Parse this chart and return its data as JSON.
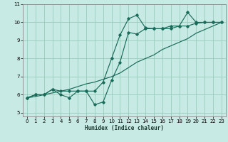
{
  "xlabel": "Humidex (Indice chaleur)",
  "ylabel": "",
  "xlim": [
    -0.5,
    23.5
  ],
  "ylim": [
    4.8,
    11.0
  ],
  "yticks": [
    5,
    6,
    7,
    8,
    9,
    10,
    11
  ],
  "xticks": [
    0,
    1,
    2,
    3,
    4,
    5,
    6,
    7,
    8,
    9,
    10,
    11,
    12,
    13,
    14,
    15,
    16,
    17,
    18,
    19,
    20,
    21,
    22,
    23
  ],
  "bg_color": "#c8eae4",
  "grid_color": "#99ccbb",
  "line_color": "#1a6b5a",
  "line1_x": [
    0,
    1,
    2,
    3,
    4,
    5,
    6,
    7,
    8,
    9,
    10,
    11,
    12,
    13,
    14,
    15,
    16,
    17,
    18,
    19,
    20,
    21,
    22,
    23
  ],
  "line1_y": [
    5.83,
    6.0,
    6.0,
    6.3,
    6.0,
    5.83,
    6.2,
    6.2,
    6.2,
    6.7,
    8.0,
    9.3,
    10.2,
    10.4,
    9.7,
    9.65,
    9.65,
    9.65,
    9.8,
    9.8,
    9.95,
    10.0,
    10.0,
    10.0
  ],
  "line2_x": [
    0,
    1,
    2,
    3,
    4,
    5,
    6,
    7,
    8,
    9,
    10,
    11,
    12,
    13,
    14,
    15,
    16,
    17,
    18,
    19,
    20,
    21,
    22,
    23
  ],
  "line2_y": [
    5.83,
    6.0,
    6.0,
    6.3,
    6.2,
    6.2,
    6.2,
    6.2,
    5.45,
    5.6,
    6.8,
    7.8,
    9.45,
    9.35,
    9.65,
    9.65,
    9.65,
    9.8,
    9.8,
    10.55,
    10.0,
    10.0,
    10.0,
    10.0
  ],
  "line3_x": [
    0,
    1,
    2,
    3,
    4,
    5,
    6,
    7,
    8,
    9,
    10,
    11,
    12,
    13,
    14,
    15,
    16,
    17,
    18,
    19,
    20,
    21,
    22,
    23
  ],
  "line3_y": [
    5.83,
    5.9,
    6.0,
    6.1,
    6.2,
    6.3,
    6.45,
    6.6,
    6.7,
    6.85,
    7.0,
    7.2,
    7.5,
    7.8,
    8.0,
    8.2,
    8.5,
    8.7,
    8.9,
    9.1,
    9.4,
    9.6,
    9.8,
    10.0
  ]
}
